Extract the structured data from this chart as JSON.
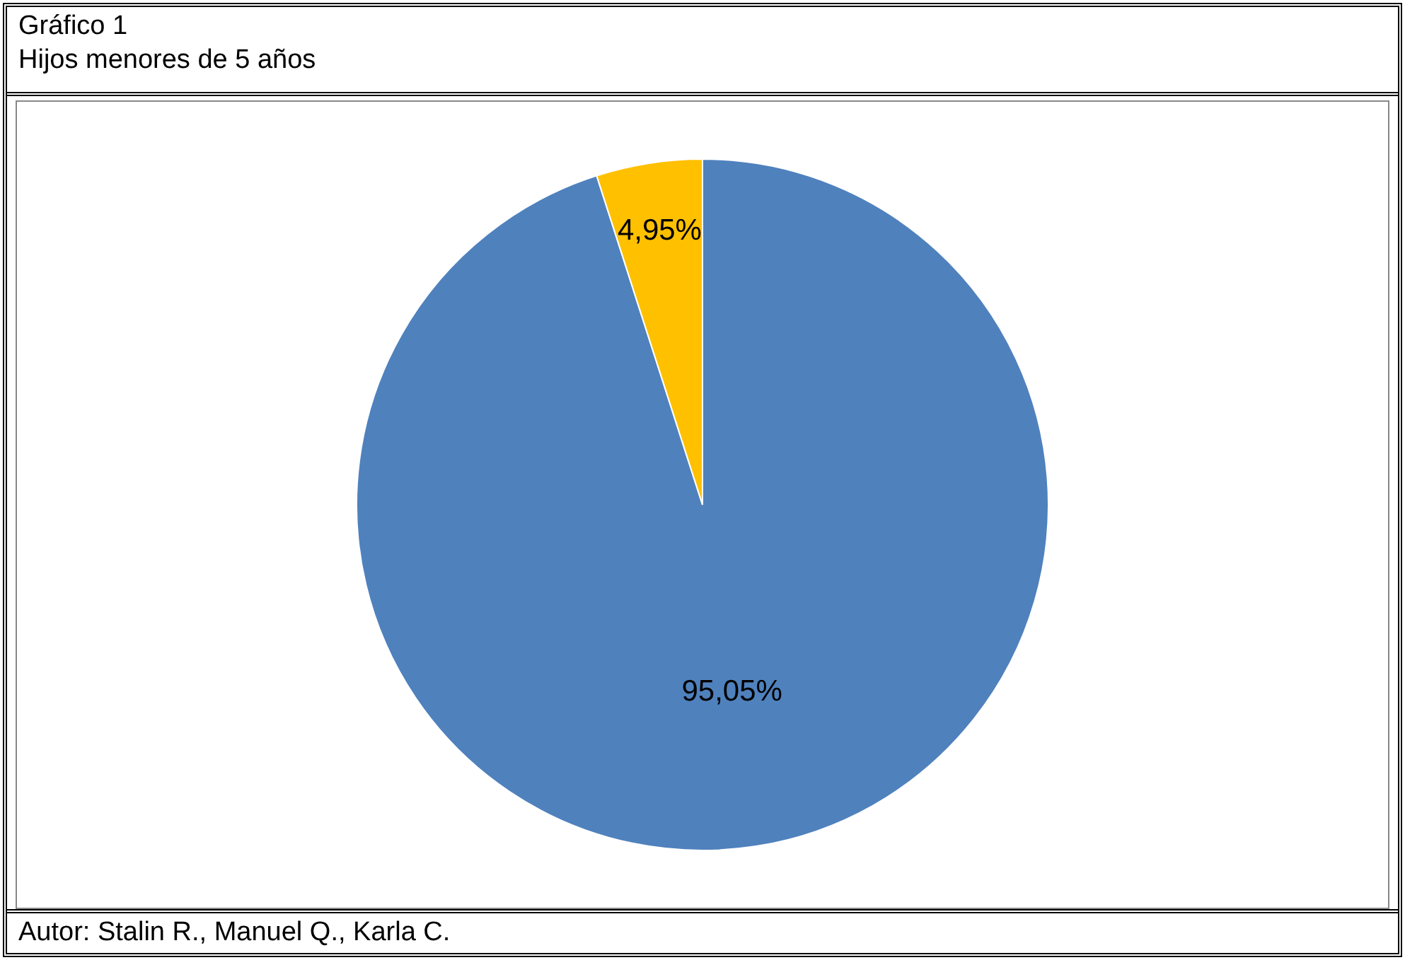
{
  "chart_data": {
    "type": "pie",
    "title": "Gráfico 1",
    "subtitle": "Hijos menores de 5 años",
    "categories": [
      null,
      null
    ],
    "values": [
      95.05,
      4.95
    ],
    "value_labels": [
      "95,05%",
      "4,95%"
    ],
    "colors": [
      "#4f81bd",
      "#ffc000"
    ],
    "annotations": [
      "Autor: Stalin R., Manuel Q., Karla C."
    ]
  }
}
